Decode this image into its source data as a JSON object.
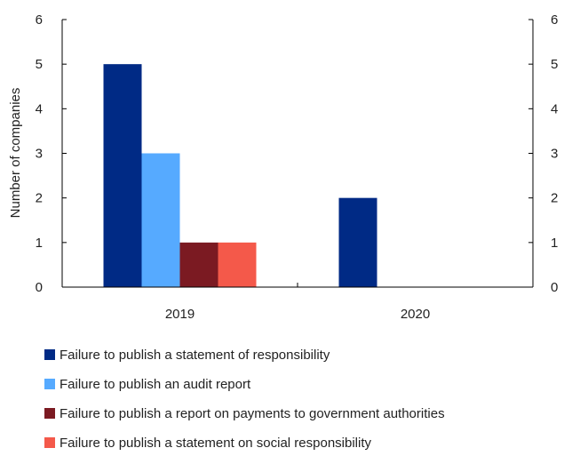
{
  "chart_data": {
    "type": "bar",
    "categories": [
      "2019",
      "2020"
    ],
    "series": [
      {
        "name": "Failure to publish a statement of responsibility",
        "values": [
          5,
          2
        ],
        "color": "#002a85"
      },
      {
        "name": "Failure to publish an audit report",
        "values": [
          3,
          0
        ],
        "color": "#56aaff"
      },
      {
        "name": "Failure to publish a report on payments to government authorities",
        "values": [
          1,
          0
        ],
        "color": "#7b1a22"
      },
      {
        "name": "Failure to publish a statement on social responsibility",
        "values": [
          1,
          0
        ],
        "color": "#f4594a"
      }
    ],
    "ylabel": "Number of companies",
    "ylim": [
      0,
      6
    ],
    "yticks": [
      "0",
      "1",
      "2",
      "3",
      "4",
      "5",
      "6"
    ],
    "secondary_y_axis": true,
    "grid": false,
    "legend_position": "bottom"
  }
}
